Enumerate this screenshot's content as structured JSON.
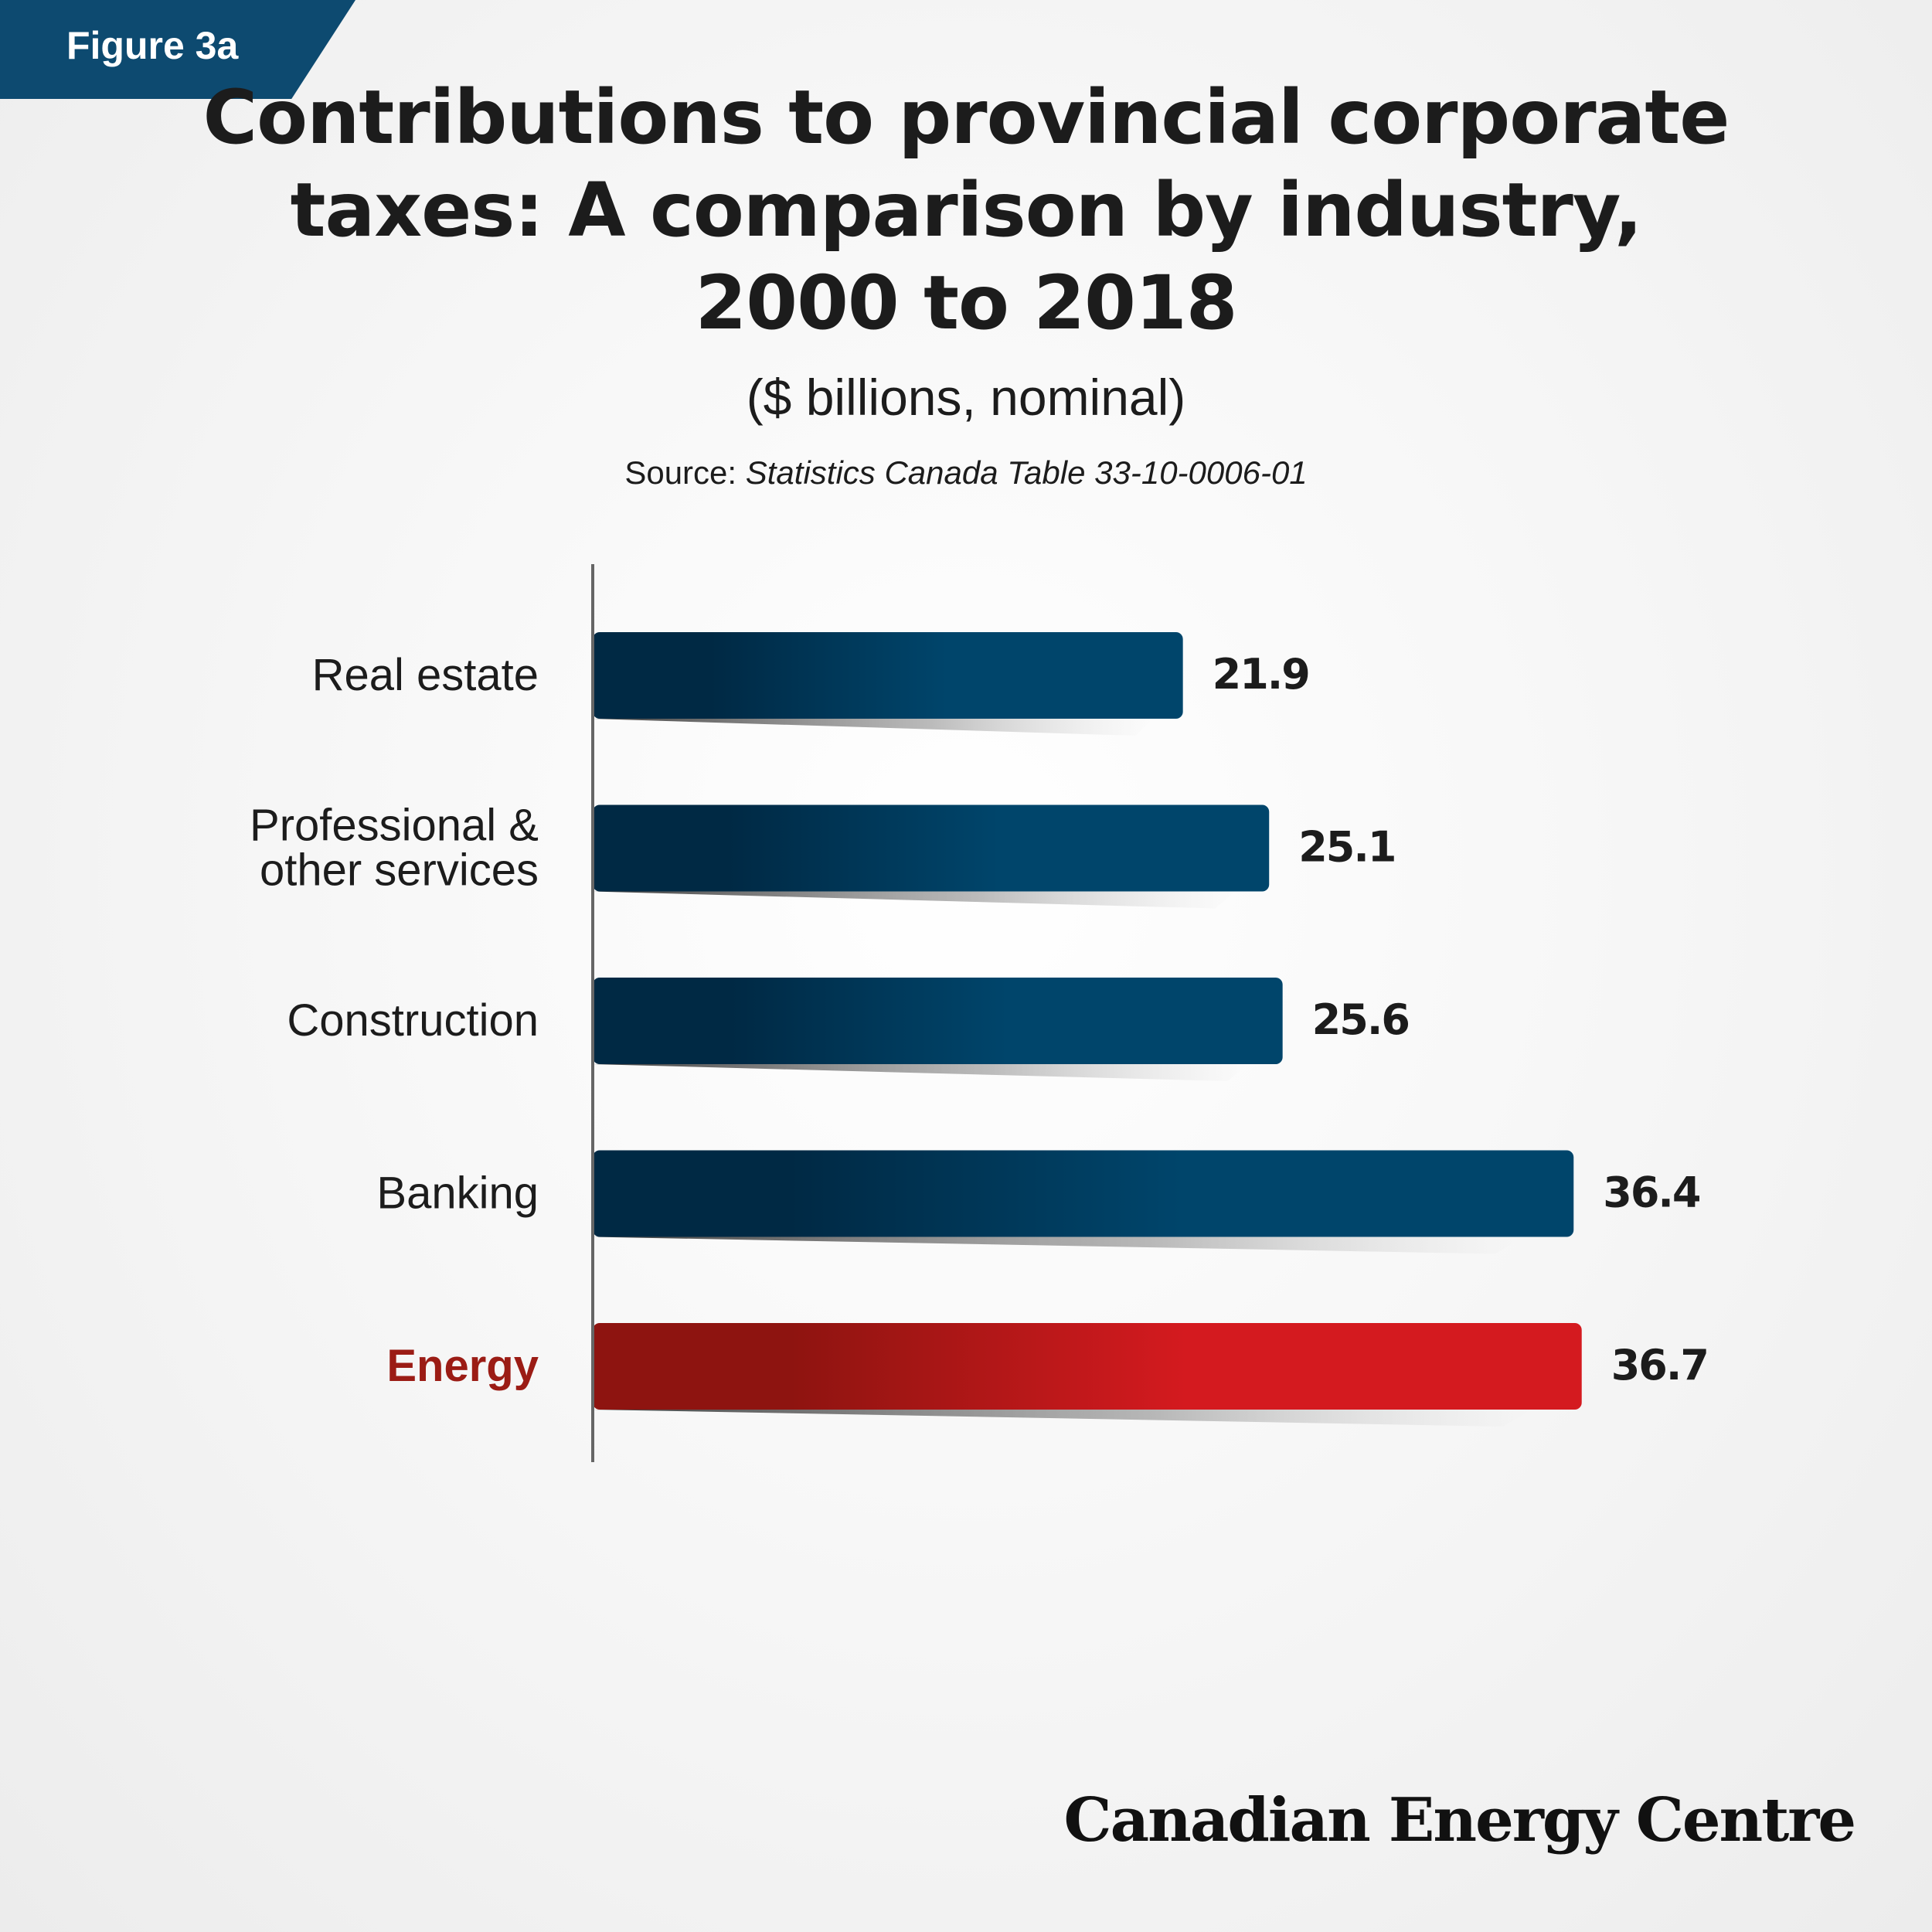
{
  "figure_label": "Figure 3a",
  "title": "Contributions to provincial corporate taxes: A comparison by industry, 2000 to 2018",
  "subtitle": "($ billions, nominal)",
  "source": {
    "prefix": "Source: ",
    "value": "Statistics Canada Table 33-10-0006-01"
  },
  "logo_text": "Canadian Energy Centre",
  "colors": {
    "badge": "#0d4a70",
    "bar_dark": "#002944",
    "bar_light": "#00456b",
    "highlight_dark": "#8e1410",
    "highlight_light": "#d41a1f",
    "highlight_label": "#9b1c15",
    "text": "#1c1c1c",
    "axis": "#666666"
  },
  "chart_data": {
    "type": "bar",
    "orientation": "horizontal",
    "categories": [
      [
        "Real estate"
      ],
      [
        "Professional &",
        "other services"
      ],
      [
        "Construction"
      ],
      [
        "Banking"
      ],
      [
        "Energy"
      ]
    ],
    "values": [
      21.9,
      25.1,
      25.6,
      36.4,
      36.7
    ],
    "value_labels": [
      "21.9",
      "25.1",
      "25.6",
      "36.4",
      "36.7"
    ],
    "highlight": "Energy",
    "xlim": [
      0,
      40
    ],
    "grid": false,
    "xlabel": "",
    "ylabel": ""
  }
}
